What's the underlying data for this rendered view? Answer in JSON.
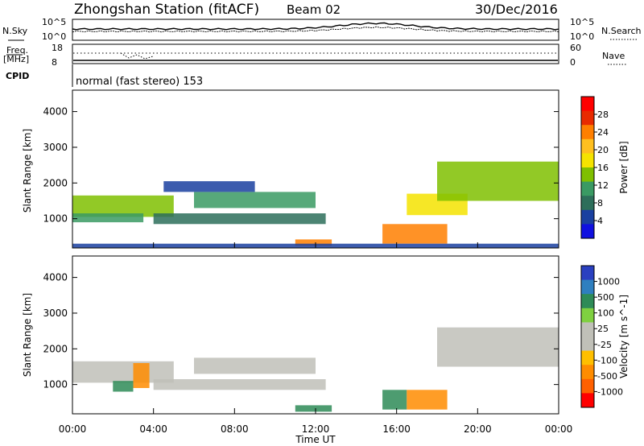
{
  "header": {
    "station": "Zhongshan Station (fitACF)",
    "beam": "Beam 02",
    "date": "30/Dec/2016"
  },
  "noise_panel": {
    "left_label": "N.Sky",
    "right_label": "N.Search",
    "left_ticks": [
      "10^5",
      "10^0"
    ],
    "right_ticks": [
      "10^5",
      "10^0"
    ]
  },
  "freq_panel": {
    "left_label_1": "Freq.",
    "left_label_2": "[MHz]",
    "right_label": "Nave",
    "left_ticks": [
      "18",
      "8"
    ],
    "right_ticks": [
      "60",
      "0"
    ]
  },
  "cpid": {
    "label": "CPID",
    "text": "normal (fast stereo) 153"
  },
  "x_axis": {
    "title": "Time UT",
    "ticks": [
      "00:00",
      "04:00",
      "08:00",
      "12:00",
      "16:00",
      "20:00",
      "00:00"
    ]
  },
  "power_colorbar": {
    "label": "Power [dB]",
    "ticks": [
      "28",
      "24",
      "20",
      "16",
      "12",
      "8",
      "4"
    ],
    "colors": [
      "#ff0000",
      "#e82a00",
      "#ff7f00",
      "#ffbf1f",
      "#f5e300",
      "#7fbf00",
      "#3a9a63",
      "#2d6e5a",
      "#1a40a0",
      "#1010e0"
    ]
  },
  "velocity_colorbar": {
    "label": "Velocity [m s^-1]",
    "ticks": [
      "1000",
      "500",
      "100",
      "25",
      "-25",
      "-100",
      "-500",
      "-1000"
    ],
    "colors": [
      "#2a40c0",
      "#2f7fbf",
      "#2e8b57",
      "#7fd040",
      "#c0c0b8",
      "#c0c0b8",
      "#ffbf00",
      "#ff8c00",
      "#ff6000",
      "#ff0000"
    ]
  },
  "chart_data": [
    {
      "type": "line",
      "title": "Zhongshan Station (fitACF)",
      "series": [],
      "x": [
        0,
        4,
        8,
        12,
        16,
        20,
        24
      ],
      "note_scale": "log"
    },
    {
      "type": "heatmap",
      "ylabel": "Slant Range [km]",
      "xlabel": "Time UT",
      "xlim": [
        0,
        24
      ],
      "ylim": [
        180,
        4600
      ],
      "yticks": [
        1000,
        2000,
        3000,
        4000
      ],
      "colorbar": "Power [dB]",
      "colorbar_range": [
        0,
        30
      ],
      "regions": [
        {
          "t": [
            0.0,
            5.0
          ],
          "r": [
            1050,
            1650
          ],
          "v": 14
        },
        {
          "t": [
            0.0,
            3.5
          ],
          "r": [
            900,
            1150
          ],
          "v": 10
        },
        {
          "t": [
            4.0,
            12.5
          ],
          "r": [
            850,
            1150
          ],
          "v": 8
        },
        {
          "t": [
            6.0,
            12.0
          ],
          "r": [
            1300,
            1750
          ],
          "v": 12
        },
        {
          "t": [
            4.5,
            9.0
          ],
          "r": [
            1750,
            2050
          ],
          "v": 6
        },
        {
          "t": [
            11.0,
            12.8
          ],
          "r": [
            240,
            420
          ],
          "v": 24
        },
        {
          "t": [
            15.3,
            18.5
          ],
          "r": [
            300,
            850
          ],
          "v": 22
        },
        {
          "t": [
            16.5,
            19.5
          ],
          "r": [
            1100,
            1700
          ],
          "v": 16
        },
        {
          "t": [
            18.0,
            24.0
          ],
          "r": [
            1500,
            2600
          ],
          "v": 14
        },
        {
          "t": [
            0.0,
            24.0
          ],
          "r": [
            180,
            300
          ],
          "v": 6
        }
      ]
    },
    {
      "type": "heatmap",
      "ylabel": "Slant Range [km]",
      "xlabel": "Time UT",
      "xlim": [
        0,
        24
      ],
      "ylim": [
        180,
        4600
      ],
      "yticks": [
        1000,
        2000,
        3000,
        4000
      ],
      "colorbar": "Velocity [m s^-1]",
      "colorbar_range": [
        -1000,
        1000
      ],
      "regions": [
        {
          "t": [
            0.0,
            5.0
          ],
          "r": [
            1050,
            1650
          ],
          "v": 0
        },
        {
          "t": [
            2.0,
            3.0
          ],
          "r": [
            800,
            1100
          ],
          "v": 100
        },
        {
          "t": [
            3.0,
            3.8
          ],
          "r": [
            900,
            1600
          ],
          "v": -400
        },
        {
          "t": [
            4.0,
            12.5
          ],
          "r": [
            850,
            1150
          ],
          "v": 0
        },
        {
          "t": [
            6.0,
            12.0
          ],
          "r": [
            1300,
            1750
          ],
          "v": 0
        },
        {
          "t": [
            11.0,
            12.8
          ],
          "r": [
            240,
            420
          ],
          "v": 150
        },
        {
          "t": [
            15.3,
            16.5
          ],
          "r": [
            300,
            850
          ],
          "v": 150
        },
        {
          "t": [
            16.5,
            18.5
          ],
          "r": [
            300,
            850
          ],
          "v": -400
        },
        {
          "t": [
            18.0,
            24.0
          ],
          "r": [
            1500,
            2600
          ],
          "v": 0
        }
      ]
    }
  ]
}
